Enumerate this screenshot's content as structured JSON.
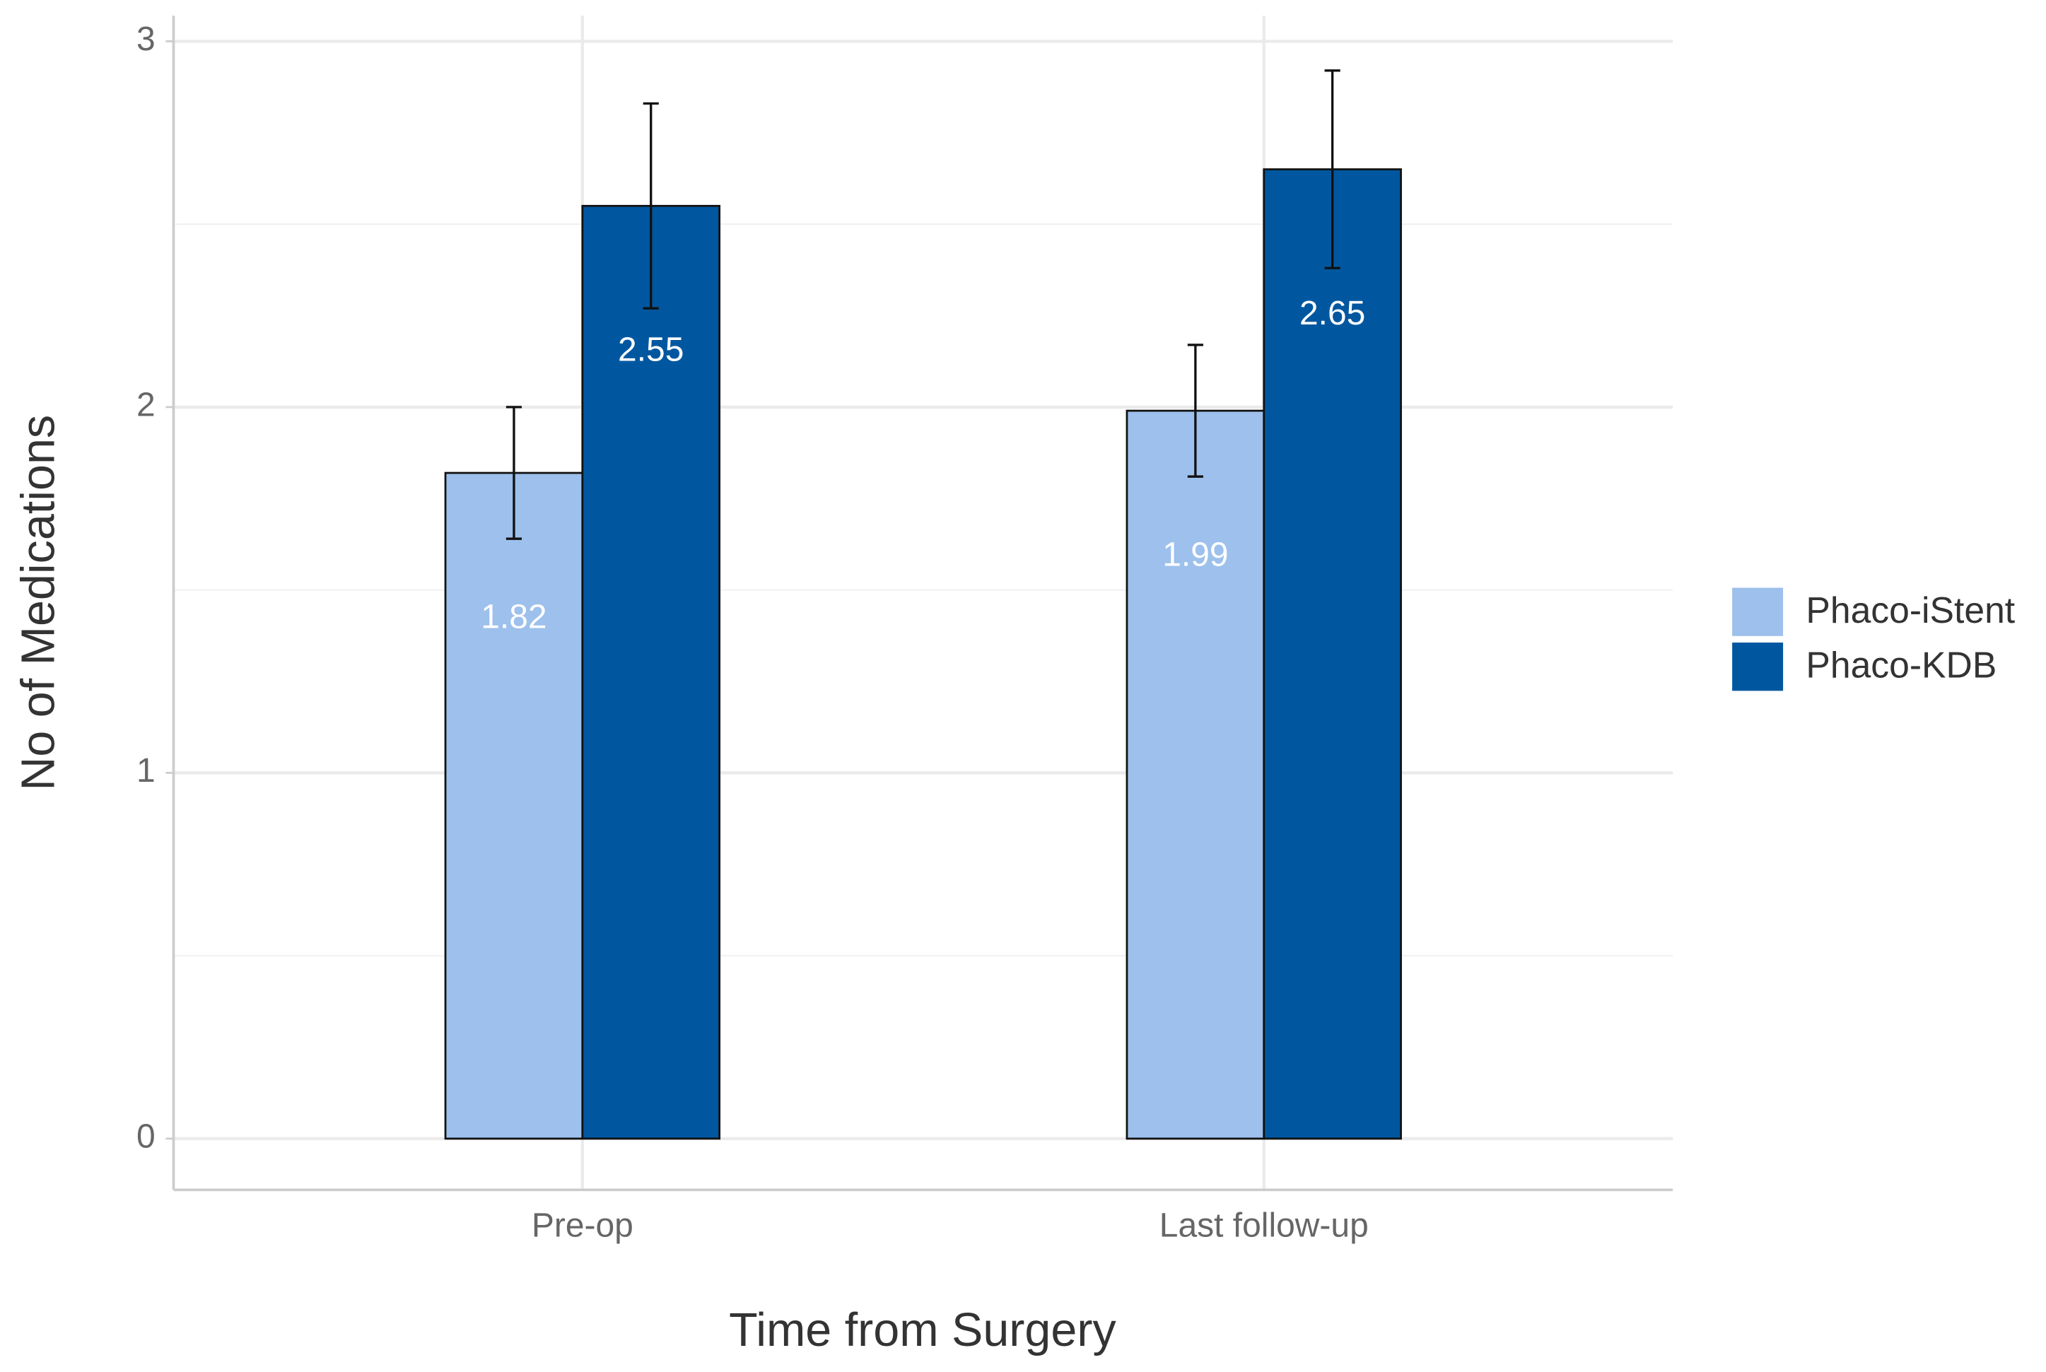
{
  "chart_data": {
    "type": "bar",
    "x_label": "Time from Surgery",
    "y_label": "No of Medications",
    "categories": [
      "Pre-op",
      "Last follow-up"
    ],
    "series": [
      {
        "name": "Phaco-iStent",
        "color": "#9dc0ec",
        "values": [
          1.82,
          1.99
        ],
        "errors": [
          0.18,
          0.18
        ]
      },
      {
        "name": "Phaco-KDB",
        "color": "#0057a0",
        "values": [
          2.55,
          2.65
        ],
        "errors": [
          0.28,
          0.27
        ]
      }
    ],
    "ylim": [
      -0.14,
      3.07
    ],
    "yticks": [
      0,
      1,
      2,
      3
    ],
    "grid": true,
    "legend": "right"
  }
}
